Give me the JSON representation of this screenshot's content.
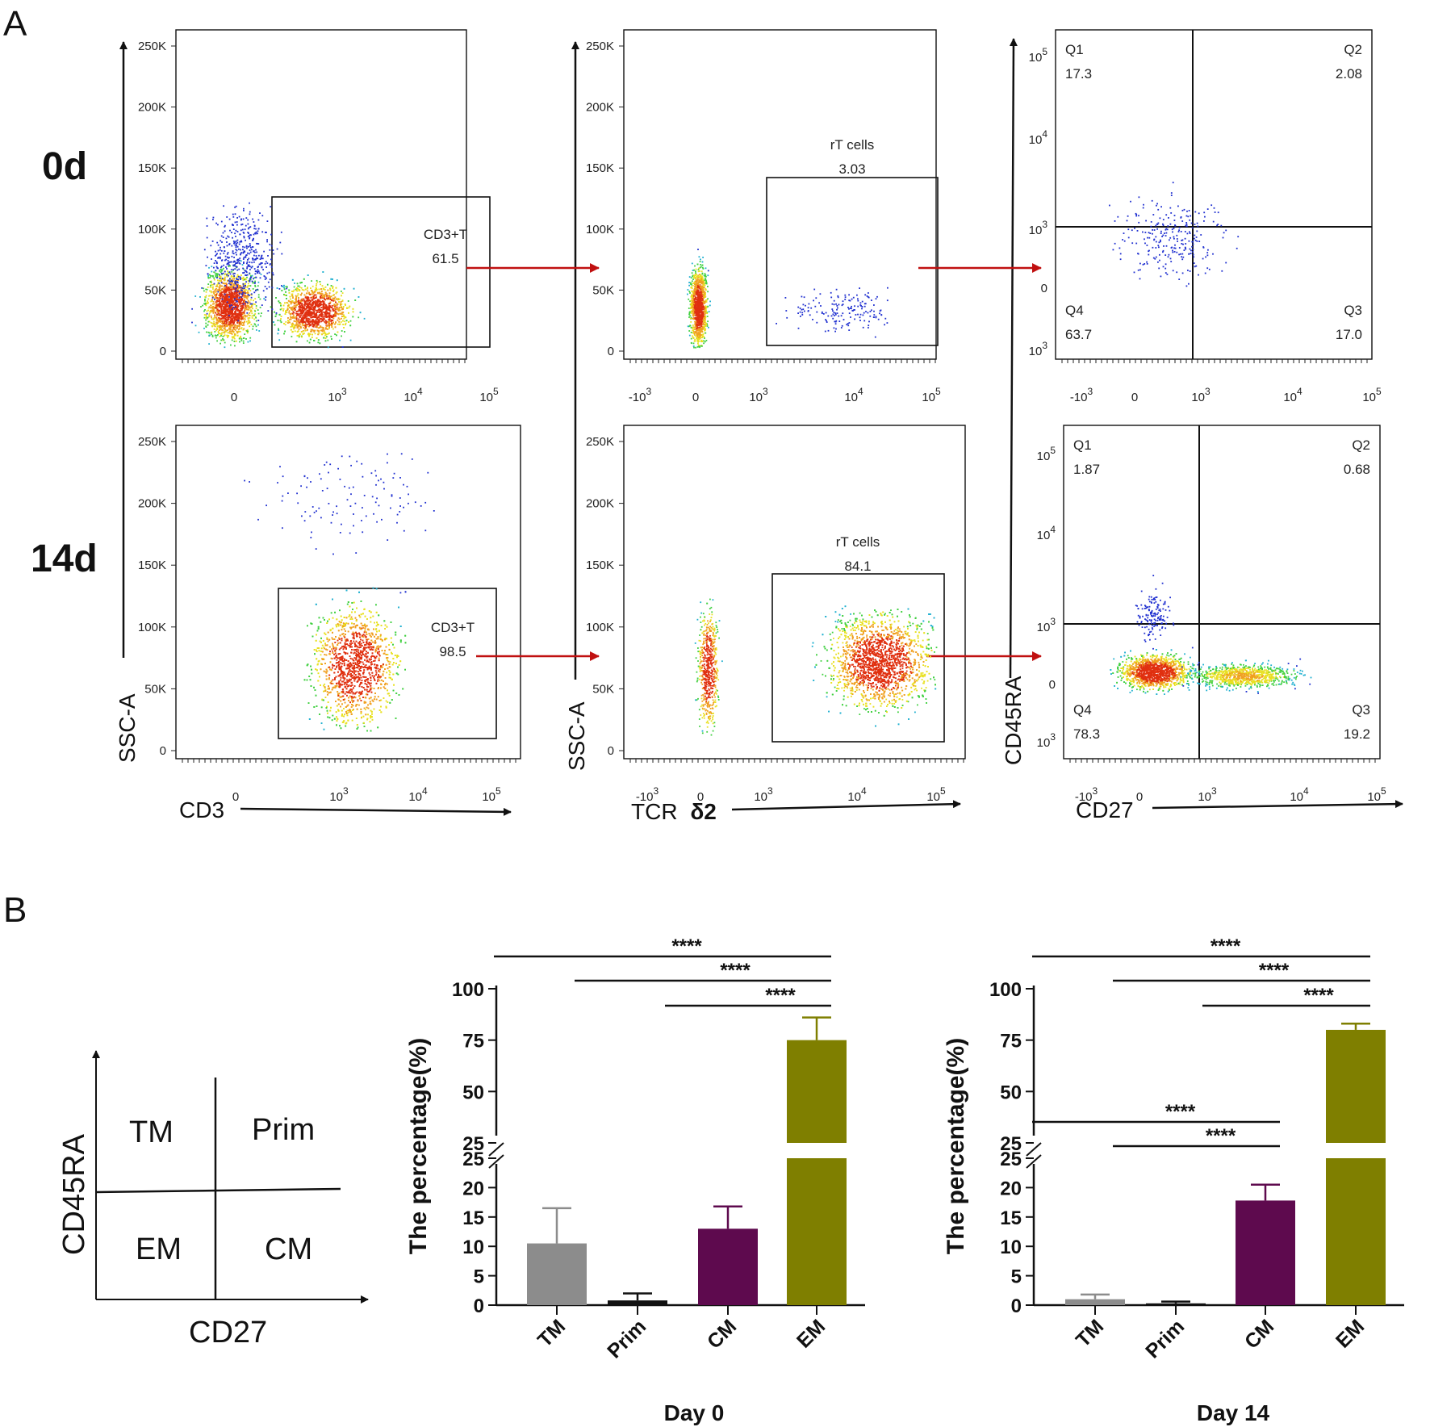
{
  "panel_labels": {
    "a": "A",
    "b": "B"
  },
  "row_labels": {
    "day0": "0d",
    "day14": "14d"
  },
  "flow": {
    "ssc_axis_label": "SSC-A",
    "ssc_ticks": [
      "250K",
      "200K",
      "150K",
      "100K",
      "50K",
      "0"
    ],
    "cd3_axis_label": "CD3",
    "cd3_ticks": [
      "0",
      "10^3",
      "10^4",
      "10^5"
    ],
    "tcr_axis_label_prefix": "TCR",
    "tcr_axis_label_symbol": "δ2",
    "tcr_ticks": [
      "-10^3",
      "0",
      "10^3",
      "10^4",
      "10^5"
    ],
    "cd45ra_axis_label": "CD45RA",
    "cd45ra_ticks": [
      "10^5",
      "10^4",
      "10^3",
      "0",
      "10^3"
    ],
    "cd27_axis_label": "CD27",
    "cd27_ticks": [
      "-10^3",
      "0",
      "10^3",
      "10^4",
      "10^5"
    ],
    "day0": {
      "cd3_gate_name": "CD3+T",
      "cd3_gate_value": "61.5",
      "rt_gate_name": "rT cells",
      "rt_gate_value": "3.03",
      "quadrants": {
        "q1_name": "Q1",
        "q1": "17.3",
        "q2_name": "Q2",
        "q2": "2.08",
        "q3_name": "Q3",
        "q3": "17.0",
        "q4_name": "Q4",
        "q4": "63.7"
      }
    },
    "day14": {
      "cd3_gate_name": "CD3+T",
      "cd3_gate_value": "98.5",
      "rt_gate_name": "rT cells",
      "rt_gate_value": "84.1",
      "quadrants": {
        "q1_name": "Q1",
        "q1": "1.87",
        "q2_name": "Q2",
        "q2": "0.68",
        "q3_name": "Q3",
        "q3": "19.2",
        "q4_name": "Q4",
        "q4": "78.3"
      }
    }
  },
  "schematic": {
    "y_label": "CD45RA",
    "x_label": "CD27",
    "top_left": "TM",
    "top_right": "Prim",
    "bottom_left": "EM",
    "bottom_right": "CM"
  },
  "chart_data": [
    {
      "type": "bar",
      "title": "Day 0",
      "xlabel": "Day 0",
      "ylabel": "The percentage(%)",
      "categories": [
        "TM",
        "Prim",
        "CM",
        "EM"
      ],
      "values": [
        10.5,
        0.8,
        13.0,
        75.0
      ],
      "errors": [
        6.0,
        1.2,
        3.8,
        11.0
      ],
      "colors": [
        "#8c8c8c",
        "#111111",
        "#5e0a4e",
        "#7f7f00"
      ],
      "y_ticks_lower": [
        "0",
        "5",
        "10",
        "15",
        "20",
        "25"
      ],
      "y_ticks_upper": [
        "25",
        "50",
        "75",
        "100"
      ],
      "ylim": [
        0,
        100
      ],
      "axis_break": [
        25,
        25
      ],
      "significance": [
        {
          "from": "TM",
          "to": "EM",
          "label": "****"
        },
        {
          "from": "Prim",
          "to": "EM",
          "label": "****"
        },
        {
          "from": "CM",
          "to": "EM",
          "label": "****"
        }
      ]
    },
    {
      "type": "bar",
      "title": "Day 14",
      "xlabel": "Day 14",
      "ylabel": "The percentage(%)",
      "categories": [
        "TM",
        "Prim",
        "CM",
        "EM"
      ],
      "values": [
        1.0,
        0.3,
        17.8,
        80.0
      ],
      "errors": [
        0.8,
        0.3,
        2.7,
        3.0
      ],
      "colors": [
        "#8c8c8c",
        "#111111",
        "#5e0a4e",
        "#7f7f00"
      ],
      "y_ticks_lower": [
        "0",
        "5",
        "10",
        "15",
        "20",
        "25"
      ],
      "y_ticks_upper": [
        "25",
        "50",
        "75",
        "100"
      ],
      "ylim": [
        0,
        100
      ],
      "axis_break": [
        25,
        25
      ],
      "significance": [
        {
          "from": "TM",
          "to": "EM",
          "label": "****"
        },
        {
          "from": "Prim",
          "to": "EM",
          "label": "****"
        },
        {
          "from": "CM",
          "to": "EM",
          "label": "****"
        },
        {
          "from": "TM",
          "to": "CM",
          "label": "****"
        },
        {
          "from": "Prim",
          "to": "CM",
          "label": "****"
        }
      ]
    }
  ]
}
